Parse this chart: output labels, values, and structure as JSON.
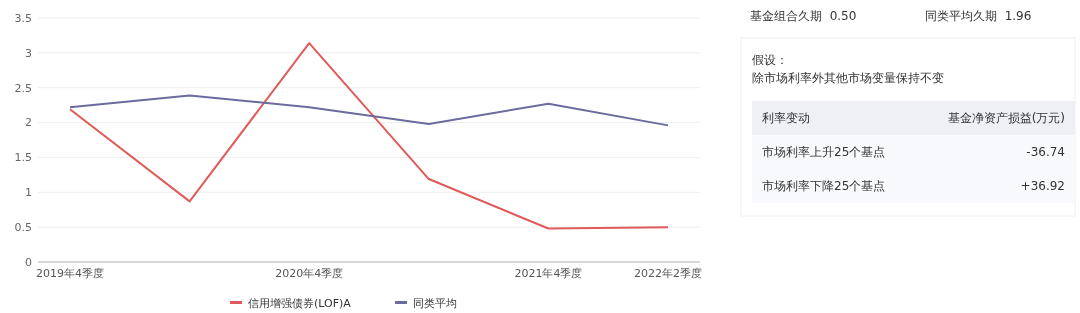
{
  "chart_data": [
    {
      "type": "line",
      "categories": [
        "2019年4季度",
        null,
        "2020年4季度",
        null,
        "2021年4季度",
        "2022年2季度"
      ],
      "series": [
        {
          "name": "信用增强债券(LOF)A",
          "color": "#e05a5a",
          "values": [
            2.19,
            0.87,
            3.14,
            1.19,
            0.48,
            0.5
          ]
        },
        {
          "name": "同类平均",
          "color": "#6b6b9f",
          "values": [
            2.22,
            2.39,
            2.22,
            1.98,
            2.27,
            1.96
          ]
        }
      ],
      "ylim": [
        0,
        3.5
      ],
      "yticks": [
        0,
        0.5,
        1,
        1.5,
        2,
        2.5,
        3,
        3.5
      ],
      "grid": "y",
      "legend": "bottom",
      "marker": "none",
      "line_style": "solid"
    },
    {
      "type": "other",
      "annotations": [
        "基金组合久期  0.50",
        "同类平均久期  1.96"
      ],
      "title": "假设：",
      "subtitle": "除市场利率外其他市场变量保持不变",
      "xlabel": "利率变动",
      "ylabel": "基金净资产损益(万元)",
      "categories": [
        "市场利率上升25个基点",
        "市场利率下降25个基点"
      ],
      "value_labels": [
        "-36.74",
        "+36.92"
      ]
    }
  ]
}
